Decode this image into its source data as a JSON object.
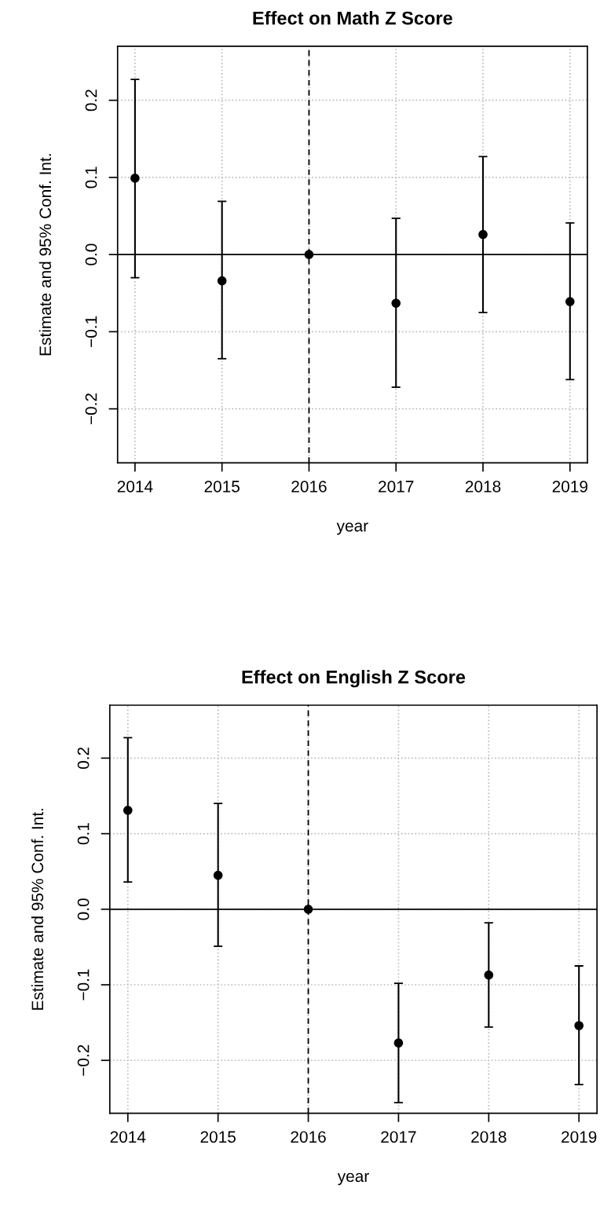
{
  "chart_data": [
    {
      "type": "scatter",
      "title": "Effect on Math Z Score",
      "xlabel": "year",
      "ylabel": "Estimate and 95% Conf. Int.",
      "x": [
        2014,
        2015,
        2016,
        2017,
        2018,
        2019
      ],
      "series": [
        {
          "color": "#000000",
          "values": [
            0.099,
            -0.034,
            0.0,
            -0.063,
            0.026,
            -0.061
          ],
          "errors": [
            [
              -0.03,
              0.227
            ],
            [
              -0.135,
              0.069
            ],
            null,
            [
              -0.172,
              0.047
            ],
            [
              -0.075,
              0.127
            ],
            [
              -0.162,
              0.041
            ]
          ]
        }
      ],
      "xlim": [
        2013.8,
        2019.2
      ],
      "xticks": [
        2014,
        2015,
        2016,
        2017,
        2018,
        2019
      ],
      "ylim": [
        -0.27,
        0.27
      ],
      "yticks": [
        {
          "value": -0.2,
          "label": "−0.2"
        },
        {
          "value": -0.1,
          "label": "−0.1"
        },
        {
          "value": 0.0,
          "label": "0.0"
        },
        {
          "value": 0.1,
          "label": "0.1"
        },
        {
          "value": 0.2,
          "label": "0.2"
        }
      ],
      "ref_lines": [
        {
          "axis": "y",
          "value": 0,
          "color": "#000000",
          "line_style": "solid"
        },
        {
          "axis": "x",
          "value": 2016,
          "color": "#000000",
          "line_style": "dashed"
        }
      ],
      "grid": true,
      "marker": "circle",
      "legend": false
    },
    {
      "type": "scatter",
      "title": "Effect on English Z Score",
      "xlabel": "year",
      "ylabel": "Estimate and 95% Conf. Int.",
      "x": [
        2014,
        2015,
        2016,
        2017,
        2018,
        2019
      ],
      "series": [
        {
          "color": "#000000",
          "values": [
            0.131,
            0.045,
            0.0,
            -0.177,
            -0.087,
            -0.154
          ],
          "errors": [
            [
              0.036,
              0.227
            ],
            [
              -0.049,
              0.14
            ],
            null,
            [
              -0.256,
              -0.098
            ],
            [
              -0.156,
              -0.018
            ],
            [
              -0.232,
              -0.075
            ]
          ]
        }
      ],
      "xlim": [
        2013.8,
        2019.2
      ],
      "xticks": [
        2014,
        2015,
        2016,
        2017,
        2018,
        2019
      ],
      "ylim": [
        -0.27,
        0.27
      ],
      "yticks": [
        {
          "value": -0.2,
          "label": "−0.2"
        },
        {
          "value": -0.1,
          "label": "−0.1"
        },
        {
          "value": 0.0,
          "label": "0.0"
        },
        {
          "value": 0.1,
          "label": "0.1"
        },
        {
          "value": 0.2,
          "label": "0.2"
        }
      ],
      "ref_lines": [
        {
          "axis": "y",
          "value": 0,
          "color": "#000000",
          "line_style": "solid"
        },
        {
          "axis": "x",
          "value": 2016,
          "color": "#000000",
          "line_style": "dashed"
        }
      ],
      "grid": true,
      "marker": "circle",
      "legend": false
    }
  ]
}
